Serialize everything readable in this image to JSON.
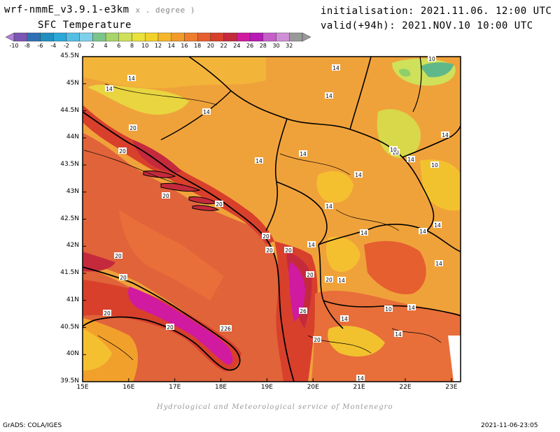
{
  "header": {
    "model": "wrf-nmmE_v3.9.1-e3km",
    "units": "x . degree )",
    "field": "SFC Temperature",
    "init": "initialisation: 2021.11.06. 12:00 UTC",
    "valid": "valid(+94h): 2021.NOV.10 10:00 UTC"
  },
  "colorbar": {
    "labels": [
      "-10",
      "-8",
      "-6",
      "-4",
      "-2",
      "0",
      "2",
      "4",
      "6",
      "8",
      "10",
      "12",
      "14",
      "16",
      "18",
      "20",
      "22",
      "24",
      "26",
      "28",
      "30",
      "32"
    ],
    "colors": [
      "#7a56b4",
      "#2f6fb5",
      "#1f8fbf",
      "#2aa8d9",
      "#55bfe3",
      "#7fd0ea",
      "#7ac58b",
      "#a8d46a",
      "#cfe05a",
      "#e8e23a",
      "#f2d12a",
      "#f5b729",
      "#f39b2a",
      "#ee7d2e",
      "#e55f2f",
      "#d8402c",
      "#c42a3c",
      "#d01aa0",
      "#b81ab8",
      "#c75fc9",
      "#cf8fd6",
      "#9a9a9a"
    ]
  },
  "map": {
    "lat_labels": [
      "45.5N",
      "45N",
      "44.5N",
      "44N",
      "43.5N",
      "43N",
      "42.5N",
      "42N",
      "41.5N",
      "41N",
      "40.5N",
      "40N",
      "39.5N"
    ],
    "lon_labels": [
      "15E",
      "16E",
      "17E",
      "18E",
      "19E",
      "20E",
      "21E",
      "22E",
      "23E"
    ],
    "contour_labels": [
      "10",
      "14",
      "14",
      "14",
      "14",
      "10",
      "14",
      "14",
      "14",
      "20",
      "20",
      "14",
      "14",
      "10",
      "14",
      "14",
      "14",
      "20",
      "20",
      "20",
      "14",
      "14",
      "20",
      "14",
      "14",
      "14",
      "20",
      "20",
      "14",
      "20",
      "20",
      "20",
      "14",
      "26",
      "10",
      "14",
      "20",
      "20",
      "14",
      "20",
      "26",
      "14",
      "20",
      "10"
    ]
  },
  "footer": {
    "credit": "Hydrological and Meteorological service of Montenegro",
    "grads": "GrADS: COLA/IGES",
    "timestamp": "2021-11-06-23:05"
  }
}
